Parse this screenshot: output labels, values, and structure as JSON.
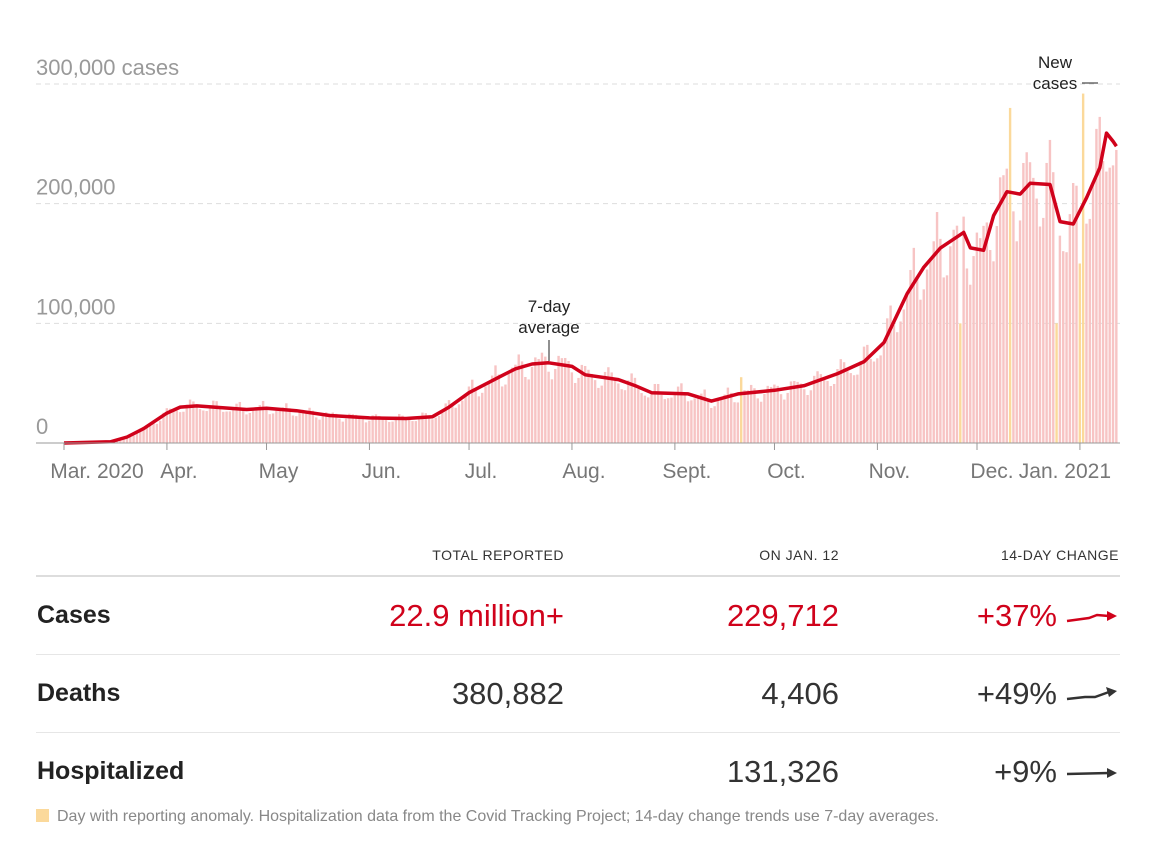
{
  "chart_data": {
    "type": "bar",
    "ylabels": [
      "300,000 cases",
      "200,000",
      "100,000",
      "0"
    ],
    "yticks": [
      300000,
      200000,
      100000,
      0
    ],
    "ylim": [
      0,
      300000
    ],
    "xlim": [
      "2020-03-01",
      "2021-01-12"
    ],
    "xticks": [
      [
        "2020-03-01",
        "Mar. 2020"
      ],
      [
        "2020-04-01",
        "Apr."
      ],
      [
        "2020-05-01",
        "May"
      ],
      [
        "2020-06-01",
        "Jun."
      ],
      [
        "2020-07-01",
        "Jul."
      ],
      [
        "2020-08-01",
        "Aug."
      ],
      [
        "2020-09-01",
        "Sept."
      ],
      [
        "2020-10-01",
        "Oct."
      ],
      [
        "2020-11-01",
        "Nov."
      ],
      [
        "2020-12-01",
        "Dec."
      ],
      [
        "2021-01-01",
        "Jan. 2021"
      ]
    ],
    "grid": true,
    "annotations": {
      "average": "7-day\naverage",
      "new_cases": "New\ncases"
    },
    "seven_day_average": [
      [
        "2020-03-01",
        0
      ],
      [
        "2020-03-15",
        1000
      ],
      [
        "2020-03-20",
        5000
      ],
      [
        "2020-03-25",
        12000
      ],
      [
        "2020-04-01",
        25000
      ],
      [
        "2020-04-05",
        30000
      ],
      [
        "2020-04-10",
        31000
      ],
      [
        "2020-04-25",
        28000
      ],
      [
        "2020-05-01",
        29000
      ],
      [
        "2020-05-10",
        27000
      ],
      [
        "2020-05-20",
        23000
      ],
      [
        "2020-06-01",
        21000
      ],
      [
        "2020-06-12",
        20500
      ],
      [
        "2020-06-20",
        22000
      ],
      [
        "2020-06-25",
        30000
      ],
      [
        "2020-07-01",
        42000
      ],
      [
        "2020-07-10",
        55000
      ],
      [
        "2020-07-15",
        62000
      ],
      [
        "2020-07-20",
        66000
      ],
      [
        "2020-07-25",
        67000
      ],
      [
        "2020-08-01",
        64000
      ],
      [
        "2020-08-05",
        57000
      ],
      [
        "2020-08-15",
        53000
      ],
      [
        "2020-08-20",
        48000
      ],
      [
        "2020-08-25",
        42000
      ],
      [
        "2020-09-05",
        41000
      ],
      [
        "2020-09-12",
        35000
      ],
      [
        "2020-09-20",
        41000
      ],
      [
        "2020-10-01",
        44000
      ],
      [
        "2020-10-10",
        48000
      ],
      [
        "2020-10-20",
        58000
      ],
      [
        "2020-10-28",
        68000
      ],
      [
        "2020-11-03",
        84000
      ],
      [
        "2020-11-10",
        125000
      ],
      [
        "2020-11-15",
        147000
      ],
      [
        "2020-11-20",
        163000
      ],
      [
        "2020-11-27",
        176000
      ],
      [
        "2020-11-29",
        163000
      ],
      [
        "2020-12-03",
        161000
      ],
      [
        "2020-12-06",
        190000
      ],
      [
        "2020-12-10",
        210000
      ],
      [
        "2020-12-14",
        208000
      ],
      [
        "2020-12-17",
        217000
      ],
      [
        "2020-12-23",
        216000
      ],
      [
        "2020-12-26",
        185000
      ],
      [
        "2020-12-30",
        183000
      ],
      [
        "2021-01-03",
        205000
      ],
      [
        "2021-01-07",
        230000
      ],
      [
        "2021-01-09",
        259000
      ],
      [
        "2021-01-11",
        252000
      ],
      [
        "2021-01-12",
        248000
      ]
    ],
    "anomaly_days": [
      [
        "2020-09-21",
        55000
      ],
      [
        "2020-11-26",
        100000
      ],
      [
        "2020-12-11",
        280000
      ],
      [
        "2020-12-25",
        100000
      ],
      [
        "2021-01-01",
        150000
      ],
      [
        "2021-01-02",
        292000
      ]
    ],
    "colors": {
      "bar": "#f7c4c4",
      "average": "#d0021b",
      "anomaly": "#fbd99b"
    }
  },
  "table": {
    "headers": [
      "TOTAL REPORTED",
      "ON JAN. 12",
      "14-DAY CHANGE"
    ],
    "rows": [
      {
        "name": "Cases",
        "total": "22.9 million+",
        "on_day": "229,712",
        "change": "+37%"
      },
      {
        "name": "Deaths",
        "total": "380,882",
        "on_day": "4,406",
        "change": "+49%"
      },
      {
        "name": "Hospitalized",
        "total": "",
        "on_day": "131,326",
        "change": "+9%"
      }
    ]
  },
  "footnote": "Day with reporting anomaly. Hospitalization data from the Covid Tracking Project; 14-day change trends use 7-day averages."
}
